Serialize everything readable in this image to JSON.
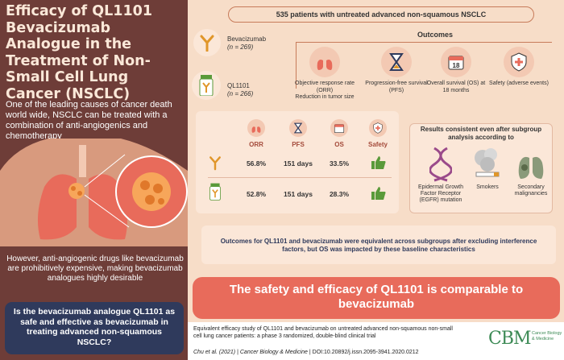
{
  "left": {
    "title": "Efficacy of QL1101 Bevacizumab Analogue in the Treatment of Non-Small Cell Lung Cancer (NSCLC)",
    "intro": "One of the leading causes of cancer death world wide, NSCLC can be treated with a combination of anti-angiogenics and chemotherapy",
    "caveat": "However, anti-angiogenic drugs like bevacizumab are prohibitively expensive, making bevacizumab analogues highly desirable",
    "question": "Is the bevacizumab analogue QL1101 as safe and effective as bevacizumab in treating advanced non-squamous NSCLC?"
  },
  "study": {
    "patients": "535 patients with untreated advanced non-squamous NSCLC",
    "outcomes_title": "Outcomes",
    "arms": [
      {
        "name": "Bevacizumab",
        "n": "(n = 269)"
      },
      {
        "name": "QL1101",
        "n": "(n = 266)"
      }
    ],
    "outcomes": [
      {
        "label": "Objective response rate (ORR)",
        "sub": "Reduction in tumor size",
        "icon": "lungs-icon"
      },
      {
        "label": "Progression-free survival (PFS)",
        "sub": "",
        "icon": "hourglass-icon"
      },
      {
        "label": "Overall survival (OS) at 18 months",
        "sub": "",
        "icon": "calendar-icon",
        "badge": "18"
      },
      {
        "label": "Safety (adverse events)",
        "sub": "",
        "icon": "shield-icon"
      }
    ]
  },
  "results": {
    "headers": [
      "ORR",
      "PFS",
      "OS",
      "Safety"
    ],
    "rows": [
      {
        "arm": "Bevacizumab",
        "values": [
          "56.8%",
          "151 days",
          "33.5%"
        ]
      },
      {
        "arm": "QL1101",
        "values": [
          "52.8%",
          "151 days",
          "28.3%"
        ]
      }
    ]
  },
  "subgroups": {
    "title": "Results consistent even after subgroup analysis according to",
    "items": [
      {
        "label": "Epidermal Growth Factor Receptor (EGFR) mutation",
        "icon": "dna-icon"
      },
      {
        "label": "Smokers",
        "icon": "smoke-icon"
      },
      {
        "label": "Secondary malignancies",
        "icon": "lung-tumor-icon"
      }
    ]
  },
  "equivalence": "Outcomes for QL1101 and bevacizumab were equivalent across subgroups after excluding interference factors, but OS was impacted by these baseline characteristics",
  "conclusion": "The safety and efficacy of QL1101 is comparable to bevacizumab",
  "footer": {
    "reference": "Equivalent efficacy study of QL1101 and bevacizumab on untreated advanced non-squamous non-small cell lung cancer patients: a phase 3 randomized, double-blind clinical trial",
    "authors": "Chu et al. (2021)",
    "journal": "Cancer Biology & Medicine",
    "doi": "DOI:10.20892/j.issn.2095-3941.2020.0212",
    "logo": "CBM",
    "logo_sub": "Cancer Biology & Medicine"
  },
  "colors": {
    "left_bg": "#6e3d38",
    "page_bg": "#f7ddc8",
    "accent": "#e86b5b",
    "navy": "#2f3a5c",
    "green": "#5a9a3a",
    "orange": "#e0962a"
  }
}
